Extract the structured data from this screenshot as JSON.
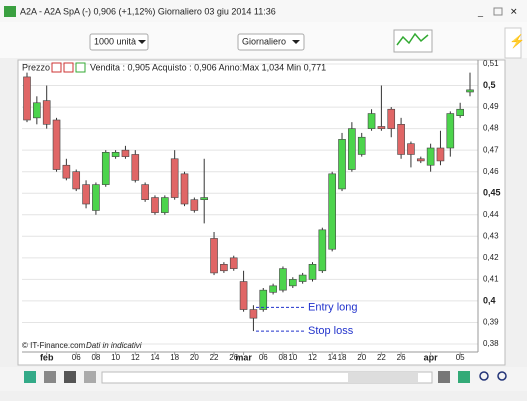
{
  "window": {
    "title": "A2A - A2A SpA (-)   0,906 (+1,12%)   Giornaliero   03 giu 2014 11:36"
  },
  "toolbar": {
    "quantity": "1000 unità",
    "period": "Giornaliero"
  },
  "chart_data": {
    "type": "candlestick",
    "panel_label": "Prezzo",
    "header": "Vendita : 0,905 Acquisto : 0,906 Anno:Max 1,034 Min 0,771",
    "footer": "© IT-Finance.com",
    "footer_note": "Dati in indicativi",
    "up_color": "#4cd44c",
    "down_color": "#e06666",
    "categories": [
      null,
      null,
      "feb",
      null,
      null,
      "06",
      null,
      "08",
      null,
      "10",
      null,
      "12",
      null,
      "14",
      null,
      "18",
      null,
      "20",
      null,
      "22",
      null,
      "26",
      "mar",
      null,
      "06",
      null,
      "08",
      "10",
      null,
      "12",
      null,
      "14",
      "18",
      null,
      "20",
      null,
      "22",
      null,
      "26",
      null,
      null,
      "apr",
      null,
      null,
      "05",
      null
    ],
    "open": [
      0.504,
      0.485,
      0.493,
      0.484,
      0.463,
      0.46,
      0.454,
      0.442,
      0.454,
      0.467,
      0.47,
      0.468,
      0.454,
      0.448,
      0.441,
      0.466,
      0.459,
      0.447,
      0.447,
      0.429,
      0.417,
      0.42,
      0.409,
      0.396,
      0.396,
      0.404,
      0.405,
      0.407,
      0.409,
      0.41,
      0.414,
      0.424,
      0.452,
      0.461,
      0.468,
      0.48,
      0.481,
      0.489,
      0.482,
      0.473,
      0.466,
      0.463,
      0.471,
      0.471,
      0.486,
      0.497
    ],
    "high": [
      0.506,
      0.495,
      0.5,
      0.485,
      0.466,
      0.461,
      0.456,
      0.455,
      0.47,
      0.47,
      0.472,
      0.47,
      0.455,
      0.449,
      0.449,
      0.47,
      0.46,
      0.448,
      0.466,
      0.432,
      0.418,
      0.421,
      0.414,
      0.398,
      0.406,
      0.408,
      0.416,
      0.411,
      0.413,
      0.418,
      0.434,
      0.46,
      0.478,
      0.483,
      0.478,
      0.489,
      0.5,
      0.49,
      0.485,
      0.474,
      0.467,
      0.473,
      0.479,
      0.488,
      0.492,
      0.506
    ],
    "low": [
      0.483,
      0.482,
      0.48,
      0.46,
      0.456,
      0.451,
      0.443,
      0.44,
      0.453,
      0.466,
      0.466,
      0.455,
      0.446,
      0.44,
      0.44,
      0.447,
      0.444,
      0.441,
      0.436,
      0.412,
      0.413,
      0.414,
      0.395,
      0.386,
      0.395,
      0.403,
      0.404,
      0.406,
      0.408,
      0.409,
      0.413,
      0.423,
      0.451,
      0.46,
      0.467,
      0.479,
      0.479,
      0.476,
      0.466,
      0.462,
      0.464,
      0.46,
      0.463,
      0.467,
      0.485,
      0.495
    ],
    "close": [
      0.484,
      0.492,
      0.482,
      0.461,
      0.457,
      0.452,
      0.445,
      0.454,
      0.469,
      0.469,
      0.467,
      0.456,
      0.447,
      0.441,
      0.448,
      0.448,
      0.445,
      0.442,
      0.448,
      0.413,
      0.414,
      0.415,
      0.396,
      0.392,
      0.405,
      0.407,
      0.415,
      0.41,
      0.412,
      0.417,
      0.433,
      0.459,
      0.475,
      0.48,
      0.476,
      0.487,
      0.48,
      0.48,
      0.468,
      0.468,
      0.465,
      0.471,
      0.465,
      0.487,
      0.489,
      0.498
    ],
    "ylim": [
      0.38,
      0.51
    ],
    "yticks": [
      {
        "value": 0.38,
        "label": "0,38"
      },
      {
        "value": 0.39,
        "label": "0,39"
      },
      {
        "value": 0.4,
        "label": "0,4"
      },
      {
        "value": 0.41,
        "label": "0,41"
      },
      {
        "value": 0.42,
        "label": "0,42"
      },
      {
        "value": 0.43,
        "label": "0,43"
      },
      {
        "value": 0.44,
        "label": "0,44"
      },
      {
        "value": 0.45,
        "label": "0,45"
      },
      {
        "value": 0.46,
        "label": "0,46"
      },
      {
        "value": 0.47,
        "label": "0,47"
      },
      {
        "value": 0.48,
        "label": "0,48"
      },
      {
        "value": 0.49,
        "label": "0,49"
      },
      {
        "value": 0.5,
        "label": "0,5"
      },
      {
        "value": 0.51,
        "label": "0,51"
      }
    ],
    "bold_ticks": [
      0.4,
      0.45,
      0.5
    ],
    "grid": true,
    "annotations": [
      {
        "text": "Entry long",
        "value": 0.397,
        "color": "#2233cc"
      },
      {
        "text": "Stop loss",
        "value": 0.386,
        "color": "#2233cc"
      }
    ]
  }
}
